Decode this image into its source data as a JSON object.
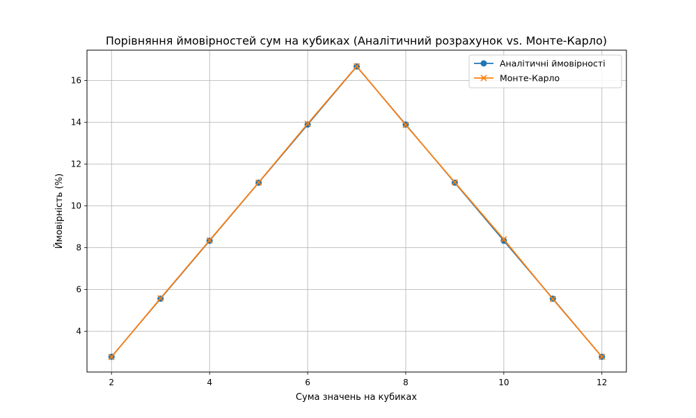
{
  "chart_data": {
    "type": "line",
    "title": "Порівняння ймовірностей сум на кубиках (Аналітичний розрахунок vs. Монте-Карло)",
    "xlabel": "Сума значень на кубиках",
    "ylabel": "Ймовірність (%)",
    "xlim": [
      1.5,
      12.5
    ],
    "ylim": [
      2.05,
      17.45
    ],
    "xticks": [
      2,
      4,
      6,
      8,
      10,
      12
    ],
    "yticks": [
      4,
      6,
      8,
      10,
      12,
      14,
      16
    ],
    "grid": true,
    "legend_position": "top-right",
    "x": [
      2,
      3,
      4,
      5,
      6,
      7,
      8,
      9,
      10,
      11,
      12
    ],
    "series": [
      {
        "name": "Аналітичні ймовірності",
        "marker": "circle",
        "color": "#1f77b4",
        "values": [
          2.78,
          5.56,
          8.33,
          11.11,
          13.89,
          16.67,
          13.89,
          11.11,
          8.33,
          5.56,
          2.78
        ]
      },
      {
        "name": "Монте-Карло",
        "marker": "x",
        "color": "#ff7f0e",
        "values": [
          2.77,
          5.58,
          8.35,
          11.12,
          13.93,
          16.68,
          13.87,
          11.13,
          8.4,
          5.54,
          2.78
        ]
      }
    ]
  }
}
